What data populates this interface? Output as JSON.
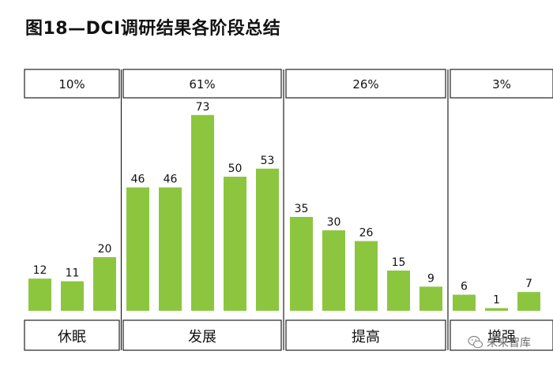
{
  "title": "图18—DCI调研结果各阶段总结",
  "watermark": "未来智库",
  "colors": {
    "bar": "#8cc63f",
    "frame": "#222222",
    "text": "#111111"
  },
  "chart_data": {
    "type": "bar",
    "title": "图18—DCI调研结果各阶段总结",
    "values": [
      12,
      11,
      20,
      46,
      46,
      73,
      50,
      53,
      35,
      30,
      26,
      15,
      9,
      6,
      1,
      7
    ],
    "ylim": [
      0,
      80
    ],
    "groups": [
      {
        "name": "休眠",
        "share": "10%",
        "values": [
          12,
          11,
          20
        ]
      },
      {
        "name": "发展",
        "share": "61%",
        "values": [
          46,
          46,
          73,
          50,
          53
        ]
      },
      {
        "name": "提高",
        "share": "26%",
        "values": [
          35,
          30,
          26,
          15,
          9
        ]
      },
      {
        "name": "增强",
        "share": "3%",
        "values": [
          6,
          1,
          7
        ]
      }
    ]
  }
}
